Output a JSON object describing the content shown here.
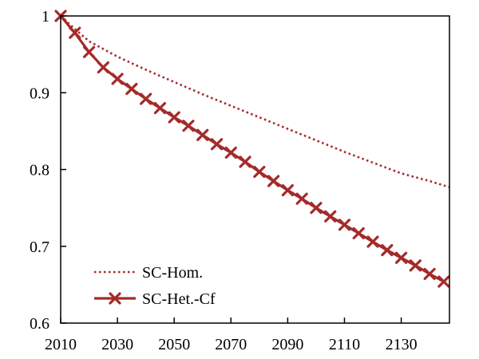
{
  "chart_data": {
    "type": "line",
    "title": "",
    "xlabel": "",
    "ylabel": "",
    "xlim": [
      2010,
      2147
    ],
    "ylim": [
      0.6,
      1.0
    ],
    "x_ticks": [
      2010,
      2030,
      2050,
      2070,
      2090,
      2110,
      2130
    ],
    "y_ticks": [
      0.6,
      0.7,
      0.8,
      0.9,
      1.0
    ],
    "x_tick_labels": [
      "2010",
      "2030",
      "2050",
      "2070",
      "2090",
      "2110",
      "2130"
    ],
    "y_tick_labels": [
      "0.6",
      "0.7",
      "0.8",
      "0.9",
      "1"
    ],
    "grid": false,
    "legend_position": "bottom-left",
    "series": [
      {
        "name": "SC-Hom.",
        "style": "dotted",
        "marker": "none",
        "color": "#a52a2a",
        "x": [
          2010,
          2015,
          2020,
          2030,
          2040,
          2050,
          2060,
          2070,
          2080,
          2090,
          2100,
          2110,
          2120,
          2130,
          2140,
          2147
        ],
        "values": [
          1.0,
          0.983,
          0.967,
          0.947,
          0.93,
          0.914,
          0.898,
          0.883,
          0.868,
          0.853,
          0.838,
          0.823,
          0.809,
          0.795,
          0.785,
          0.777
        ]
      },
      {
        "name": "SC-Het.-Cf",
        "style": "solid",
        "marker": "x",
        "color": "#a52a2a",
        "x": [
          2010,
          2015,
          2020,
          2025,
          2030,
          2035,
          2040,
          2045,
          2050,
          2055,
          2060,
          2065,
          2070,
          2075,
          2080,
          2085,
          2090,
          2095,
          2100,
          2105,
          2110,
          2115,
          2120,
          2125,
          2130,
          2135,
          2140,
          2145
        ],
        "values": [
          1.0,
          0.978,
          0.953,
          0.933,
          0.918,
          0.905,
          0.892,
          0.88,
          0.868,
          0.857,
          0.845,
          0.833,
          0.822,
          0.81,
          0.797,
          0.785,
          0.773,
          0.762,
          0.75,
          0.739,
          0.728,
          0.717,
          0.706,
          0.695,
          0.685,
          0.675,
          0.664,
          0.654
        ]
      }
    ]
  }
}
